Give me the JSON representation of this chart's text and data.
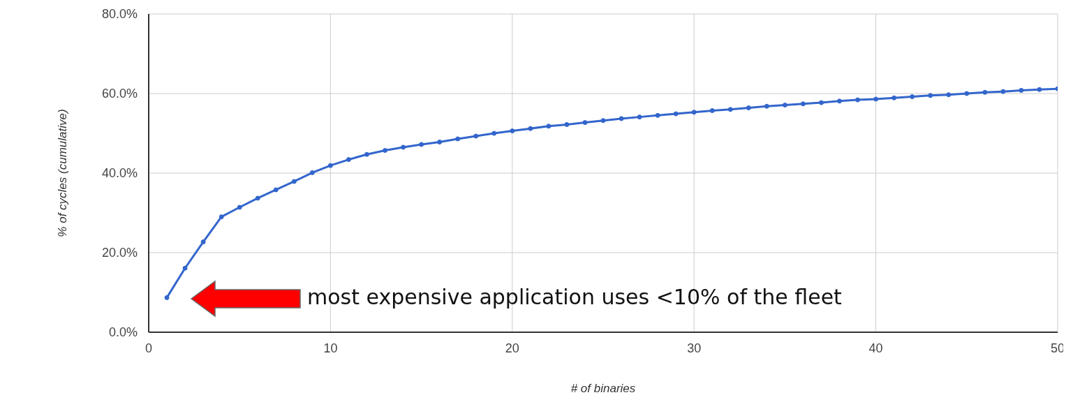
{
  "chart_data": {
    "type": "line",
    "xlabel": "# of binaries",
    "ylabel": "% of cycles (cumulative)",
    "x": [
      1,
      2,
      3,
      4,
      5,
      6,
      7,
      8,
      9,
      10,
      11,
      12,
      13,
      14,
      15,
      16,
      17,
      18,
      19,
      20,
      21,
      22,
      23,
      24,
      25,
      26,
      27,
      28,
      29,
      30,
      31,
      32,
      33,
      34,
      35,
      36,
      37,
      38,
      39,
      40,
      41,
      42,
      43,
      44,
      45,
      46,
      47,
      48,
      49,
      50
    ],
    "series": [
      {
        "color": "#3366cc",
        "values": [
          8.7,
          16.1,
          22.7,
          29.0,
          31.4,
          33.7,
          35.8,
          37.9,
          40.1,
          41.9,
          43.4,
          44.7,
          45.7,
          46.5,
          47.2,
          47.8,
          48.6,
          49.3,
          50.0,
          50.6,
          51.2,
          51.8,
          52.2,
          52.7,
          53.2,
          53.7,
          54.1,
          54.5,
          54.9,
          55.3,
          55.7,
          56.0,
          56.4,
          56.8,
          57.1,
          57.4,
          57.7,
          58.1,
          58.4,
          58.6,
          58.9,
          59.2,
          59.5,
          59.7,
          60.0,
          60.3,
          60.5,
          60.8,
          61.0,
          61.2
        ]
      }
    ],
    "xlim": [
      0,
      50
    ],
    "xticks": [
      0,
      10,
      20,
      30,
      40,
      50
    ],
    "ylim": [
      0,
      80
    ],
    "yticks": [
      {
        "value": 0,
        "label": "0.0%"
      },
      {
        "value": 20,
        "label": "20.0%"
      },
      {
        "value": 40,
        "label": "40.0%"
      },
      {
        "value": 60,
        "label": "60.0%"
      },
      {
        "value": 80,
        "label": "80.0%"
      }
    ],
    "grid": true,
    "marker": "circle",
    "line_style": "solid",
    "annotations": [
      "most expensive application uses <10% of the fleet"
    ]
  }
}
